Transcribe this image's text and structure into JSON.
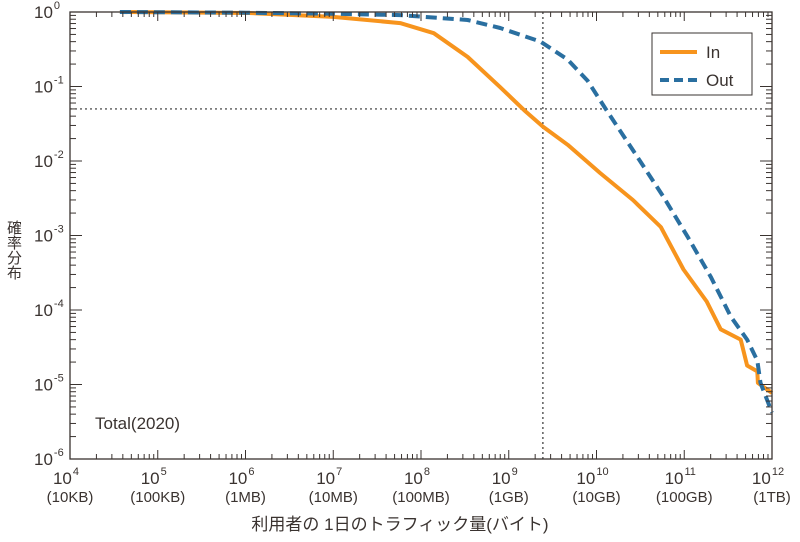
{
  "chart_data": {
    "type": "line",
    "title": "",
    "xlabel": "利用者の 1日のトラフィック量(バイト)",
    "ylabel": "確率分布",
    "xscale": "log",
    "yscale": "log",
    "xlim": [
      10000.0,
      1000000000000.0
    ],
    "ylim": [
      1e-06,
      1
    ],
    "x_ticks": [
      {
        "exp": "4",
        "unit": "(10KB)"
      },
      {
        "exp": "5",
        "unit": "(100KB)"
      },
      {
        "exp": "6",
        "unit": "(1MB)"
      },
      {
        "exp": "7",
        "unit": "(10MB)"
      },
      {
        "exp": "8",
        "unit": "(100MB)"
      },
      {
        "exp": "9",
        "unit": "(1GB)"
      },
      {
        "exp": "10",
        "unit": "(10GB)"
      },
      {
        "exp": "11",
        "unit": "(100GB)"
      },
      {
        "exp": "12",
        "unit": "(1TB)"
      }
    ],
    "y_ticks": [
      "0",
      "-1",
      "-2",
      "-3",
      "-4",
      "-5",
      "-6"
    ],
    "tick_base": "10",
    "annotation": "Total(2020)",
    "reference_lines": {
      "x": 2450000000.0,
      "y": 0.05
    },
    "legend_position": "top-right",
    "series": [
      {
        "name": "In",
        "color": "#f7941d",
        "style": "solid",
        "x": [
          37000.0,
          1100000.0,
          10000000.0,
          58000000.0,
          140000000.0,
          340000000.0,
          800000000.0,
          1500000000.0,
          2450000000.0,
          4700000000.0,
          11000000000.0,
          26000000000.0,
          54000000000.0,
          98000000000.0,
          180000000000.0,
          260000000000.0,
          440000000000.0,
          520000000000.0,
          680000000000.0,
          690000000000.0,
          1000000000000.0
        ],
        "y": [
          1.0,
          0.97,
          0.86,
          0.71,
          0.52,
          0.25,
          0.098,
          0.048,
          0.029,
          0.0165,
          0.0069,
          0.003,
          0.0013,
          0.00035,
          0.00013,
          5.5e-05,
          4e-05,
          1.8e-05,
          1.5e-05,
          1.05e-05,
          7.7e-06
        ]
      },
      {
        "name": "Out",
        "color": "#2a6fa0",
        "style": "dashed",
        "x": [
          37000.0,
          1000000.0,
          10000000.0,
          58000000.0,
          340000000.0,
          800000000.0,
          2300000000.0,
          4700000000.0,
          7900000000.0,
          13000000000.0,
          26000000000.0,
          58000000000.0,
          110000000000.0,
          200000000000.0,
          340000000000.0,
          520000000000.0,
          680000000000.0,
          740000000000.0,
          1000000000000.0
        ],
        "y": [
          1.0,
          0.98,
          0.95,
          0.91,
          0.78,
          0.61,
          0.4,
          0.23,
          0.12,
          0.048,
          0.014,
          0.0033,
          0.00095,
          0.00028,
          8.1e-05,
          4e-05,
          2.1e-05,
          1.05e-05,
          4.2e-06
        ]
      }
    ]
  }
}
